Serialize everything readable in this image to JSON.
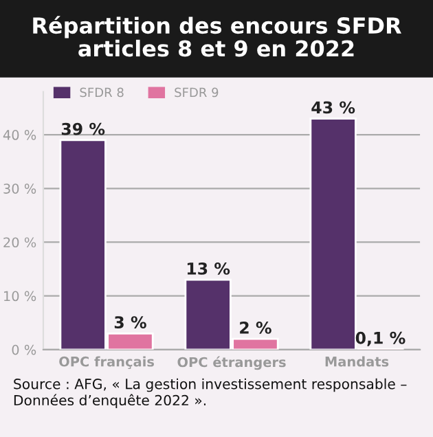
{
  "chart_data": {
    "type": "bar",
    "title": "Répartition des encours SFDR\narticles 8 et 9 en 2022",
    "categories": [
      "OPC français",
      "OPC étrangers",
      "Mandats"
    ],
    "series": [
      {
        "name": "SFDR 8",
        "color": "#55316a",
        "values": [
          39,
          13,
          43
        ],
        "value_labels": [
          "39 %",
          "13 %",
          "43 %"
        ]
      },
      {
        "name": "SFDR 9",
        "color": "#e074a0",
        "values": [
          3,
          2,
          0.1
        ],
        "value_labels": [
          "3 %",
          "2 %",
          "0,1 %"
        ]
      }
    ],
    "ylim": [
      0,
      48
    ],
    "yticks": [
      {
        "value": 0,
        "label": "0 %"
      },
      {
        "value": 10,
        "label": "10 %"
      },
      {
        "value": 20,
        "label": "20 %"
      },
      {
        "value": 30,
        "label": "30 %"
      },
      {
        "value": 40,
        "label": "40 %"
      }
    ],
    "grid": "y",
    "legend": "top left",
    "annotations": [
      "Source : AFG, « La gestion investissement responsable – Données d’enquête 2022 »."
    ]
  }
}
